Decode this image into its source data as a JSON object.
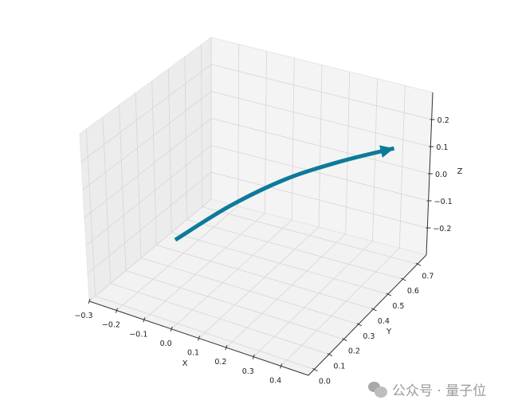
{
  "chart_data": {
    "type": "line3d",
    "title": "",
    "xlabel": "X",
    "ylabel": "Y",
    "zlabel": "Z",
    "xlim": [
      -0.3,
      0.5
    ],
    "ylim": [
      -0.04,
      0.76
    ],
    "zlim": [
      -0.3,
      0.3
    ],
    "xticks": [
      "−0.3",
      "−0.2",
      "−0.1",
      "0.0",
      "0.1",
      "0.2",
      "0.3",
      "0.4"
    ],
    "xtick_values": [
      -0.3,
      -0.2,
      -0.1,
      0.0,
      0.1,
      0.2,
      0.3,
      0.4
    ],
    "yticks": [
      "0.0",
      "0.1",
      "0.2",
      "0.3",
      "0.4",
      "0.5",
      "0.6",
      "0.7"
    ],
    "ytick_values": [
      0.0,
      0.1,
      0.2,
      0.3,
      0.4,
      0.5,
      0.6,
      0.7
    ],
    "zticks": [
      "−0.2",
      "−0.1",
      "0.0",
      "0.1",
      "0.2"
    ],
    "ztick_values": [
      -0.2,
      -0.1,
      0.0,
      0.1,
      0.2
    ],
    "grid": true,
    "series": [
      {
        "style": "curved arrow",
        "color": "#0e7a9a",
        "x": [
          0.0,
          0.1,
          0.2,
          0.3,
          0.4
        ],
        "y": [
          0.0,
          0.175,
          0.35,
          0.525,
          0.7
        ],
        "z": [
          0.0,
          0.07,
          0.11,
          0.115,
          0.1
        ]
      }
    ],
    "pane_color": "#f2f2f2",
    "grid_color": "#d6d6d6"
  },
  "watermark": {
    "icon": "wechat-icon",
    "text": "公众号 · 量子位"
  }
}
